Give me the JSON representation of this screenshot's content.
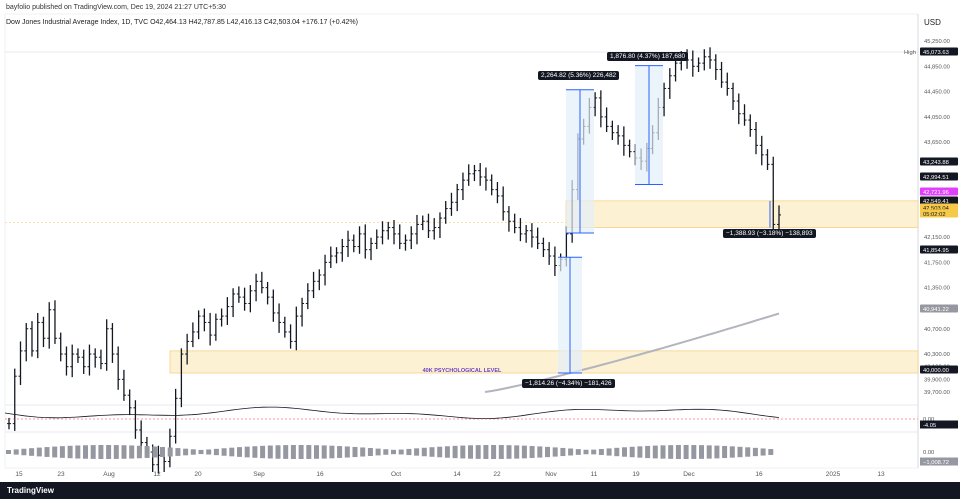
{
  "header": {
    "published": "bayfolio published on TradingView.com, Dec 19, 2024 21:27 UTC+5:30",
    "legend": "Dow Jones Industrial Average Index, 1D, TVC  O42,464.13  H42,787.85  L42,416.13  C42,503.04  +176.17 (+0.42%)",
    "currency": "USD"
  },
  "footer": {
    "logo": "TradingView"
  },
  "chart_data": {
    "type": "ohlc",
    "title": "Dow Jones Industrial Average Index, 1D, TVC",
    "x_ticks": [
      "15",
      "23",
      "Aug",
      "12",
      "20",
      "Sep",
      "16",
      "Oct",
      "14",
      "22",
      "Nov",
      "11",
      "19",
      "Dec",
      "16",
      "2025",
      "13"
    ],
    "y_ticks": [
      "45,250.00",
      "44,850.00",
      "44,450.00",
      "44,050.00",
      "43,650.00",
      "42,150.00",
      "41,750.00",
      "41,350.00",
      "40,700.00",
      "40,300.00",
      "40,100.00",
      "39,900.00",
      "39,700.00"
    ],
    "price_labels": [
      {
        "text": "High",
        "value": "45,073.63"
      },
      {
        "text": "",
        "value": "43,243.88"
      },
      {
        "text": "",
        "value": "42,994.51"
      },
      {
        "text": "",
        "value": "42,721.96"
      },
      {
        "text": "",
        "value": "42,549.41"
      },
      {
        "text": "",
        "value": "42,503.04"
      },
      {
        "text": "",
        "value": "05:02:02"
      },
      {
        "text": "",
        "value": "41,854.95"
      },
      {
        "text": "",
        "value": "40,941.22"
      },
      {
        "text": "",
        "value": "40,000.00"
      }
    ],
    "ohlc_closes": [
      39200,
      39950,
      40350,
      40700,
      40350,
      40800,
      40550,
      41000,
      40550,
      40300,
      40100,
      40300,
      40250,
      40100,
      40300,
      40250,
      40150,
      40700,
      40300,
      39900,
      39650,
      39450,
      39100,
      38900,
      38750,
      38550,
      38700,
      38600,
      39000,
      39600,
      40300,
      40500,
      40650,
      40900,
      40800,
      40600,
      40850,
      40900,
      41050,
      41250,
      41200,
      41100,
      41300,
      41450,
      41350,
      41200,
      40950,
      40800,
      40650,
      40500,
      40900,
      41100,
      41300,
      41450,
      41550,
      41750,
      41850,
      41900,
      42000,
      42100,
      42000,
      42200,
      41950,
      42050,
      42150,
      42250,
      42300,
      42200,
      42050,
      42100,
      42200,
      42350,
      42400,
      42250,
      42300,
      42450,
      42600,
      42700,
      42900,
      43050,
      43150,
      43200,
      43100,
      43050,
      42900,
      42800,
      42550,
      42400,
      42300,
      42200,
      42250,
      42150,
      42050,
      41950,
      41850,
      41700,
      41800,
      42200,
      42900,
      43700,
      43900,
      44200,
      44350,
      44050,
      43900,
      43800,
      43750,
      43600,
      43500,
      43400,
      43350,
      43550,
      43800,
      44200,
      44500,
      44700,
      44900,
      45000,
      44950,
      44850,
      44900,
      45000,
      44950,
      44800,
      44600,
      44500,
      44300,
      44100,
      44000,
      43850,
      43600,
      43450,
      43300,
      42350,
      42500
    ],
    "ma_label": "40,941.22",
    "zones": [
      {
        "label": "40K PSYCHOLOGICAL LEVEL",
        "top": 40350,
        "bottom": 40000
      },
      {
        "top": 42721.96,
        "bottom": 42300
      }
    ],
    "measurements": [
      {
        "text": "2,264.82 (5.36%) 226,482"
      },
      {
        "text": "1,876.80 (4.37%) 187,680"
      },
      {
        "text": "−1,814.26 (−4.34%) −181,426"
      },
      {
        "text": "−1,388.93 (−3.18%) −138,893"
      }
    ],
    "indicator1": {
      "labels": [
        "0.00",
        "-4.05"
      ]
    },
    "indicator2": {
      "labels": [
        "0.00",
        "−1,008.72"
      ]
    }
  }
}
